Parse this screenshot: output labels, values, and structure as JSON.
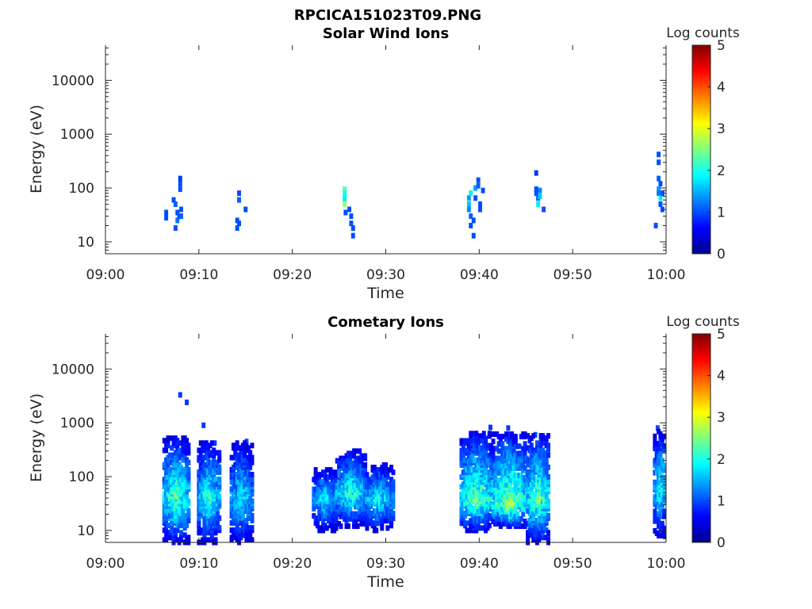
{
  "figure": {
    "title": "RPCICA151023T09.PNG"
  },
  "chart_data": [
    {
      "type": "heatmap",
      "title": "Solar Wind Ions",
      "xlabel": "Time",
      "ylabel": "Energy (eV)",
      "x_ticks": [
        "09:00",
        "09:10",
        "09:20",
        "09:30",
        "09:40",
        "09:50",
        "10:00"
      ],
      "xlim": [
        "09:00",
        "10:00"
      ],
      "y_scale": "log",
      "y_ticks": [
        "10",
        "100",
        "1000",
        "10000"
      ],
      "ylim": [
        6,
        45000
      ],
      "colorbar": {
        "label": "Log counts",
        "range": [
          0,
          5
        ],
        "ticks": [
          "0",
          "1",
          "2",
          "3",
          "4",
          "5"
        ],
        "colormap": "jet"
      },
      "cells": [
        {
          "t": 6.5,
          "e": 35,
          "v": 1.0
        },
        {
          "t": 6.5,
          "e": 28,
          "v": 1.0
        },
        {
          "t": 7.3,
          "e": 60,
          "v": 1.0
        },
        {
          "t": 7.5,
          "e": 50,
          "v": 1.1
        },
        {
          "t": 7.5,
          "e": 18,
          "v": 1.0
        },
        {
          "t": 7.7,
          "e": 35,
          "v": 1.0
        },
        {
          "t": 7.7,
          "e": 25,
          "v": 1.2
        },
        {
          "t": 7.9,
          "e": 30,
          "v": 1.0
        },
        {
          "t": 8.0,
          "e": 95,
          "v": 1.0
        },
        {
          "t": 8.0,
          "e": 120,
          "v": 1.0
        },
        {
          "t": 8.0,
          "e": 150,
          "v": 0.9
        },
        {
          "t": 8.1,
          "e": 40,
          "v": 1.0
        },
        {
          "t": 8.1,
          "e": 30,
          "v": 1.1
        },
        {
          "t": 14.1,
          "e": 25,
          "v": 1.0
        },
        {
          "t": 14.1,
          "e": 18,
          "v": 1.0
        },
        {
          "t": 14.3,
          "e": 22,
          "v": 1.0
        },
        {
          "t": 14.3,
          "e": 80,
          "v": 1.0
        },
        {
          "t": 14.3,
          "e": 60,
          "v": 1.1
        },
        {
          "t": 15.0,
          "e": 40,
          "v": 1.0
        },
        {
          "t": 25.6,
          "e": 95,
          "v": 2.3
        },
        {
          "t": 25.6,
          "e": 80,
          "v": 2.0
        },
        {
          "t": 25.6,
          "e": 70,
          "v": 1.9
        },
        {
          "t": 25.6,
          "e": 60,
          "v": 1.8
        },
        {
          "t": 25.6,
          "e": 50,
          "v": 2.6
        },
        {
          "t": 25.7,
          "e": 35,
          "v": 1.0
        },
        {
          "t": 26.1,
          "e": 40,
          "v": 1.0
        },
        {
          "t": 26.3,
          "e": 30,
          "v": 1.0
        },
        {
          "t": 26.3,
          "e": 22,
          "v": 1.0
        },
        {
          "t": 26.5,
          "e": 18,
          "v": 1.0
        },
        {
          "t": 26.5,
          "e": 13,
          "v": 1.0
        },
        {
          "t": 38.9,
          "e": 65,
          "v": 1.4
        },
        {
          "t": 38.9,
          "e": 50,
          "v": 1.6
        },
        {
          "t": 38.9,
          "e": 40,
          "v": 1.3
        },
        {
          "t": 39.1,
          "e": 80,
          "v": 1.8
        },
        {
          "t": 39.1,
          "e": 30,
          "v": 1.1
        },
        {
          "t": 39.1,
          "e": 20,
          "v": 1.0
        },
        {
          "t": 39.4,
          "e": 25,
          "v": 1.0
        },
        {
          "t": 39.4,
          "e": 13,
          "v": 1.0
        },
        {
          "t": 39.6,
          "e": 100,
          "v": 1.4
        },
        {
          "t": 39.6,
          "e": 65,
          "v": 1.0
        },
        {
          "t": 39.9,
          "e": 140,
          "v": 1.0
        },
        {
          "t": 39.9,
          "e": 110,
          "v": 1.1
        },
        {
          "t": 40.1,
          "e": 50,
          "v": 1.0
        },
        {
          "t": 40.1,
          "e": 40,
          "v": 1.0
        },
        {
          "t": 40.4,
          "e": 90,
          "v": 1.0
        },
        {
          "t": 46.1,
          "e": 190,
          "v": 0.9
        },
        {
          "t": 46.1,
          "e": 95,
          "v": 1.0
        },
        {
          "t": 46.1,
          "e": 80,
          "v": 1.0
        },
        {
          "t": 46.3,
          "e": 65,
          "v": 1.1
        },
        {
          "t": 46.3,
          "e": 50,
          "v": 1.8
        },
        {
          "t": 46.5,
          "e": 90,
          "v": 1.3
        },
        {
          "t": 46.5,
          "e": 70,
          "v": 1.6
        },
        {
          "t": 46.9,
          "e": 40,
          "v": 1.0
        },
        {
          "t": 58.9,
          "e": 20,
          "v": 1.0
        },
        {
          "t": 59.2,
          "e": 420,
          "v": 1.0
        },
        {
          "t": 59.2,
          "e": 300,
          "v": 1.0
        },
        {
          "t": 59.2,
          "e": 150,
          "v": 1.1
        },
        {
          "t": 59.2,
          "e": 95,
          "v": 1.4
        },
        {
          "t": 59.2,
          "e": 80,
          "v": 1.2
        },
        {
          "t": 59.4,
          "e": 120,
          "v": 1.0
        },
        {
          "t": 59.4,
          "e": 65,
          "v": 1.8
        },
        {
          "t": 59.4,
          "e": 50,
          "v": 1.0
        },
        {
          "t": 59.6,
          "e": 80,
          "v": 1.0
        },
        {
          "t": 59.6,
          "e": 40,
          "v": 1.0
        }
      ]
    },
    {
      "type": "heatmap",
      "title": "Cometary Ions",
      "xlabel": "Time",
      "ylabel": "Energy (eV)",
      "x_ticks": [
        "09:00",
        "09:10",
        "09:20",
        "09:30",
        "09:40",
        "09:50",
        "10:00"
      ],
      "xlim": [
        "09:00",
        "10:00"
      ],
      "y_scale": "log",
      "y_ticks": [
        "10",
        "100",
        "1000",
        "10000"
      ],
      "ylim": [
        6,
        45000
      ],
      "colorbar": {
        "label": "Log counts",
        "range": [
          0,
          5
        ],
        "ticks": [
          "0",
          "1",
          "2",
          "3",
          "4",
          "5"
        ],
        "colormap": "jet"
      },
      "cells": [
        {
          "t": 8.0,
          "e": 3300,
          "v": 0.9
        },
        {
          "t": 8.7,
          "e": 2400,
          "v": 0.9
        },
        {
          "t": 10.5,
          "e": 900,
          "v": 0.9
        },
        {
          "t": 11.7,
          "e": 420,
          "v": 0.9
        },
        {
          "t": 15.1,
          "e": 450,
          "v": 1.0
        },
        {
          "t": 38.7,
          "e": 450,
          "v": 1.0
        },
        {
          "t": 41.2,
          "e": 820,
          "v": 0.9
        },
        {
          "t": 43.1,
          "e": 800,
          "v": 0.9
        },
        {
          "t": 46.0,
          "e": 600,
          "v": 1.0
        },
        {
          "t": 59.1,
          "e": 800,
          "v": 1.0
        }
      ],
      "blocks": [
        {
          "t0": 6.3,
          "t1": 8.9,
          "peak": 42,
          "e_min": 6,
          "e_max": 520,
          "v_max": 2.9
        },
        {
          "t0": 10.0,
          "t1": 12.3,
          "peak": 40,
          "e_min": 6,
          "e_max": 460,
          "v_max": 2.6
        },
        {
          "t0": 13.5,
          "t1": 15.7,
          "peak": 40,
          "e_min": 6,
          "e_max": 450,
          "v_max": 2.3
        },
        {
          "t0": 22.3,
          "t1": 24.8,
          "peak": 40,
          "e_min": 10,
          "e_max": 140,
          "v_max": 2.3
        },
        {
          "t0": 24.8,
          "t1": 27.8,
          "peak": 50,
          "e_min": 12,
          "e_max": 330,
          "v_max": 2.7
        },
        {
          "t0": 27.8,
          "t1": 30.8,
          "peak": 40,
          "e_min": 10,
          "e_max": 170,
          "v_max": 2.4
        },
        {
          "t0": 38.1,
          "t1": 41.5,
          "peak": 40,
          "e_min": 10,
          "e_max": 650,
          "v_max": 3.0
        },
        {
          "t0": 41.5,
          "t1": 45.2,
          "peak": 32,
          "e_min": 12,
          "e_max": 650,
          "v_max": 3.2
        },
        {
          "t0": 45.2,
          "t1": 47.6,
          "peak": 40,
          "e_min": 6,
          "e_max": 620,
          "v_max": 3.0
        },
        {
          "t0": 58.8,
          "t1": 60.0,
          "peak": 70,
          "e_min": 8,
          "e_max": 700,
          "v_max": 2.6
        }
      ]
    }
  ]
}
